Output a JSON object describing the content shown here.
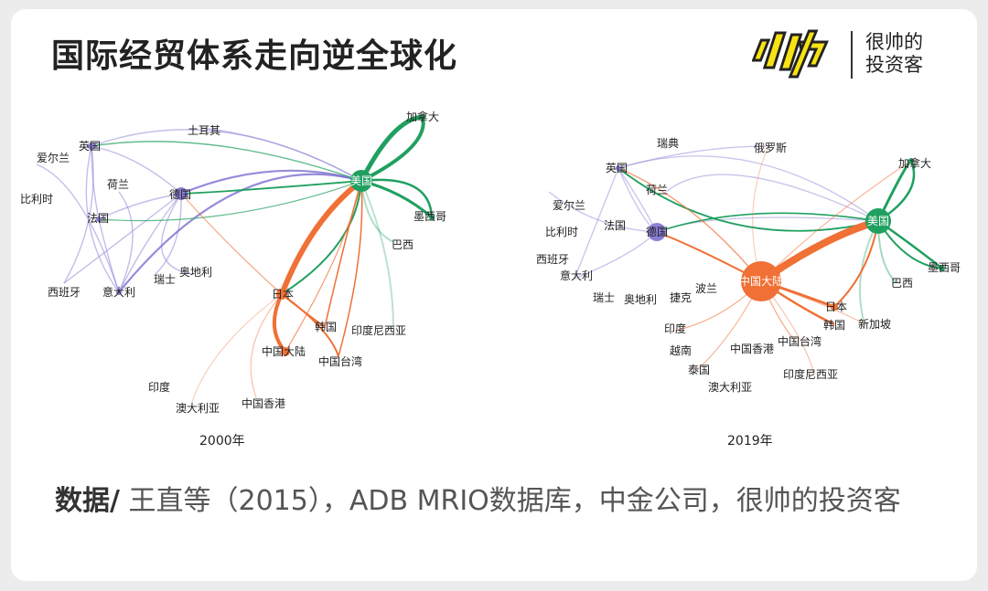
{
  "title": "国际经贸体系走向逆全球化",
  "brand": {
    "name_line1": "很帅的",
    "name_line2": "投资客"
  },
  "colors": {
    "us_node": "#20a060",
    "china_node": "#f07035",
    "europe_node": "#8a7fd6",
    "us_links": "#20a060",
    "china_links": "#f07035",
    "europe_links": "#8f88d8"
  },
  "networks": [
    {
      "year_label": "2000年",
      "nodes": [
        "加拿大",
        "土耳其",
        "英国",
        "爱尔兰",
        "荷兰",
        "德国",
        "美国",
        "比利时",
        "法国",
        "墨西哥",
        "巴西",
        "西班牙",
        "意大利",
        "瑞士",
        "奥地利",
        "日本",
        "韩国",
        "印度尼西亚",
        "中国大陆",
        "中国台湾",
        "印度",
        "澳大利亚",
        "中国香港"
      ]
    },
    {
      "year_label": "2019年",
      "nodes": [
        "瑞典",
        "俄罗斯",
        "加拿大",
        "英国",
        "荷兰",
        "爱尔兰",
        "法国",
        "德国",
        "美国",
        "比利时",
        "西班牙",
        "意大利",
        "墨西哥",
        "中国大陆",
        "巴西",
        "瑞士",
        "奥地利",
        "捷克",
        "波兰",
        "日本",
        "印度",
        "韩国",
        "新加坡",
        "越南",
        "中国香港",
        "中国台湾",
        "泰国",
        "澳大利亚",
        "印度尼西亚"
      ]
    }
  ],
  "source": {
    "label": "数据/",
    "text": " 王直等（2015），ADB MRIO数据库，中金公司，很帅的投资客"
  }
}
